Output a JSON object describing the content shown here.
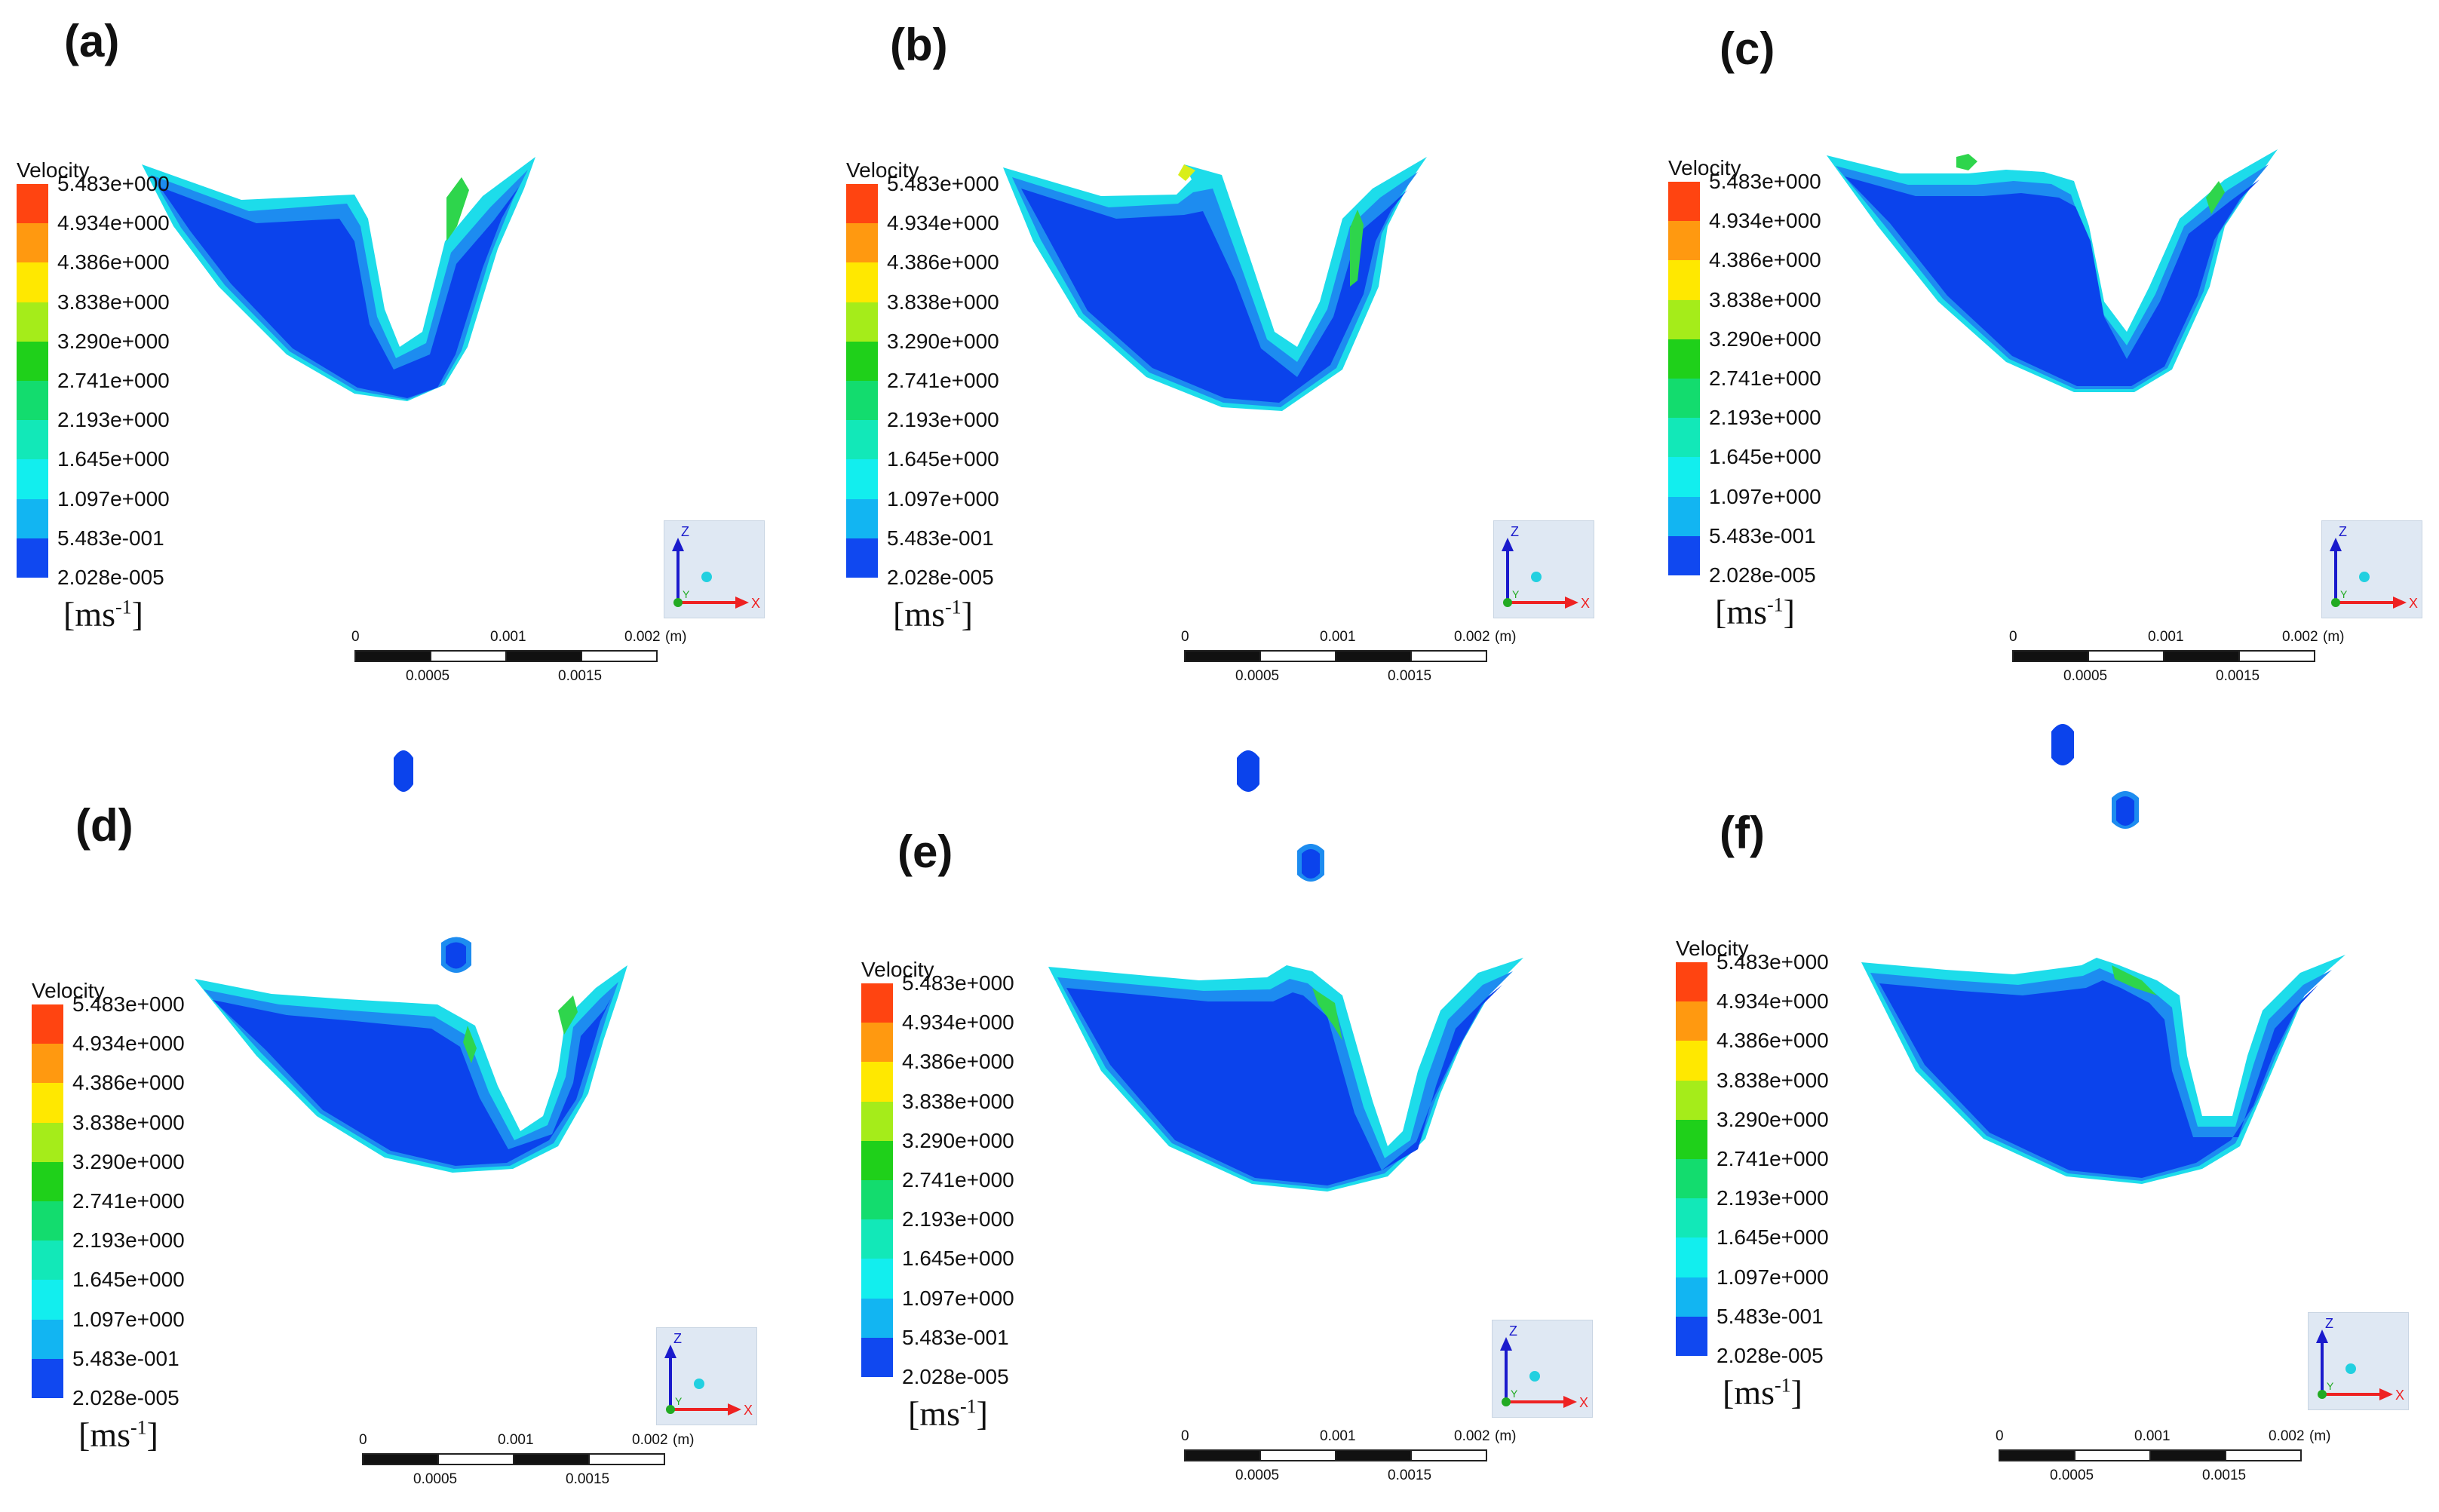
{
  "panels": [
    {
      "id": "a",
      "label": "(a)"
    },
    {
      "id": "b",
      "label": "(b)"
    },
    {
      "id": "c",
      "label": "(c)"
    },
    {
      "id": "d",
      "label": "(d)"
    },
    {
      "id": "e",
      "label": "(e)"
    },
    {
      "id": "f",
      "label": "(f)"
    }
  ],
  "legend": {
    "title": "Velocity",
    "labels": [
      "5.483e+000",
      "4.934e+000",
      "4.386e+000",
      "3.838e+000",
      "3.290e+000",
      "2.741e+000",
      "2.193e+000",
      "1.645e+000",
      "1.097e+000",
      "5.483e-001",
      "2.028e-005"
    ],
    "unit_base": "[ms",
    "unit_exp": "-1",
    "unit_close": "]",
    "colors": [
      "#ff4411",
      "#ff9910",
      "#ffe800",
      "#a5ec1a",
      "#1fd01a",
      "#13dc6e",
      "#12e8b8",
      "#12eeee",
      "#12b5f2",
      "#1048f0"
    ]
  },
  "scale_bar": {
    "top_labels": [
      "0",
      "0.001",
      "0.002"
    ],
    "unit": "(m)",
    "bottom_labels": [
      "0.0005",
      "0.0015"
    ]
  },
  "axes": {
    "z": "Z",
    "x": "X",
    "y": "Y"
  },
  "colors": {
    "fluid_dark": "#0b43ec",
    "fluid_mid": "#1d8cf0",
    "fluid_light": "#1ddcea",
    "fluid_green": "#2ed54c",
    "fluid_yellow": "#d9ee1a",
    "axis_blue": "#1a1acc",
    "axis_red": "#ee2222",
    "axis_green": "#22aa22"
  }
}
